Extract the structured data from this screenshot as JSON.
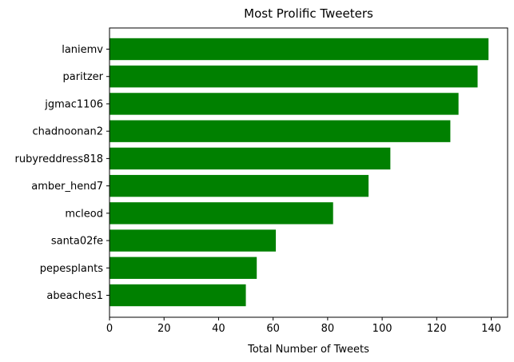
{
  "chart_data": {
    "type": "bar",
    "orientation": "horizontal",
    "title": "Most Prolific Tweeters",
    "xlabel": "Total Number of Tweets",
    "ylabel": "",
    "categories": [
      "laniemv",
      "paritzer",
      "jgmac1106",
      "chadnoonan2",
      "rubyreddress818",
      "amber_hend7",
      "mcleod",
      "santa02fe",
      "pepesplants",
      "abeaches1"
    ],
    "values": [
      139,
      135,
      128,
      125,
      103,
      95,
      82,
      61,
      54,
      50
    ],
    "xlim": [
      0,
      146
    ],
    "xticks": [
      0,
      20,
      40,
      60,
      80,
      100,
      120,
      140
    ],
    "bar_color": "#008000",
    "grid": false,
    "legend": "none"
  }
}
